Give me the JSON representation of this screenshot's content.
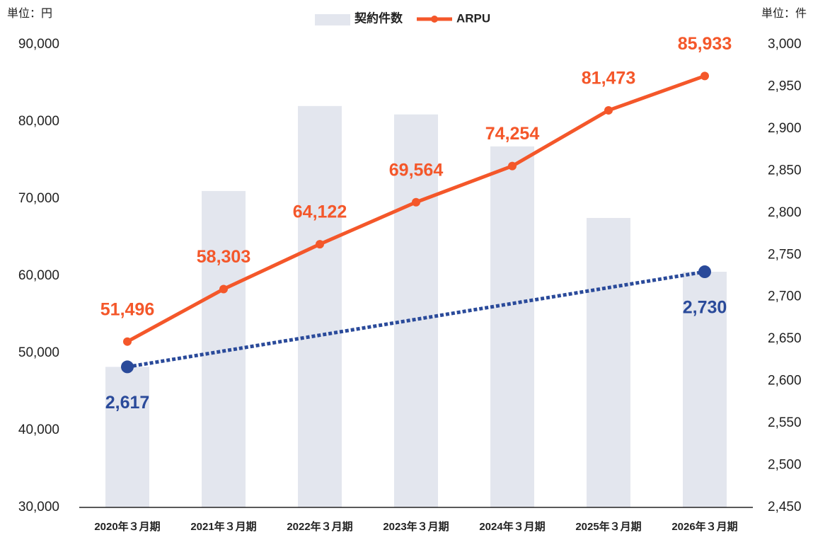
{
  "chart_data": {
    "type": "bar_line",
    "unit_left": "単位：円",
    "unit_right": "単位：件",
    "categories": [
      "2020年３月期",
      "2021年３月期",
      "2022年３月期",
      "2023年３月期",
      "2024年３月期",
      "2025年３月期",
      "2026年３月期"
    ],
    "series": [
      {
        "name": "契約件数",
        "type": "bar",
        "axis": "y2",
        "color": "#e3e6ee",
        "values": [
          2617,
          2826,
          2927,
          2917,
          2879,
          2794,
          2730
        ],
        "value_labels": [
          "2,617",
          null,
          null,
          null,
          null,
          null,
          "2,730"
        ],
        "label_color": "#2a4a9a"
      },
      {
        "name": "ARPU",
        "type": "line",
        "axis": "y",
        "color": "#f4572a",
        "values": [
          51496,
          58303,
          64122,
          69564,
          74254,
          81473,
          85933
        ],
        "value_labels": [
          "51,496",
          "58,303",
          "64,122",
          "69,564",
          "74,254",
          "81,473",
          "85,933"
        ]
      }
    ],
    "ylim": [
      30000,
      90000
    ],
    "yticks": [
      {
        "value": 30000,
        "label": "30,000"
      },
      {
        "value": 40000,
        "label": "40,000"
      },
      {
        "value": 50000,
        "label": "50,000"
      },
      {
        "value": 60000,
        "label": "60,000"
      },
      {
        "value": 70000,
        "label": "70,000"
      },
      {
        "value": 80000,
        "label": "80,000"
      },
      {
        "value": 90000,
        "label": "90,000"
      }
    ],
    "y2lim": [
      2450,
      3000
    ],
    "y2ticks": [
      {
        "value": 2450,
        "label": "2,450"
      },
      {
        "value": 2500,
        "label": "2,500"
      },
      {
        "value": 2550,
        "label": "2,550"
      },
      {
        "value": 2600,
        "label": "2,600"
      },
      {
        "value": 2650,
        "label": "2,650"
      },
      {
        "value": 2700,
        "label": "2,700"
      },
      {
        "value": 2750,
        "label": "2,750"
      },
      {
        "value": 2800,
        "label": "2,800"
      },
      {
        "value": 2850,
        "label": "2,850"
      },
      {
        "value": 2900,
        "label": "2,900"
      },
      {
        "value": 2950,
        "label": "2,950"
      },
      {
        "value": 3000,
        "label": "3,000"
      }
    ]
  }
}
